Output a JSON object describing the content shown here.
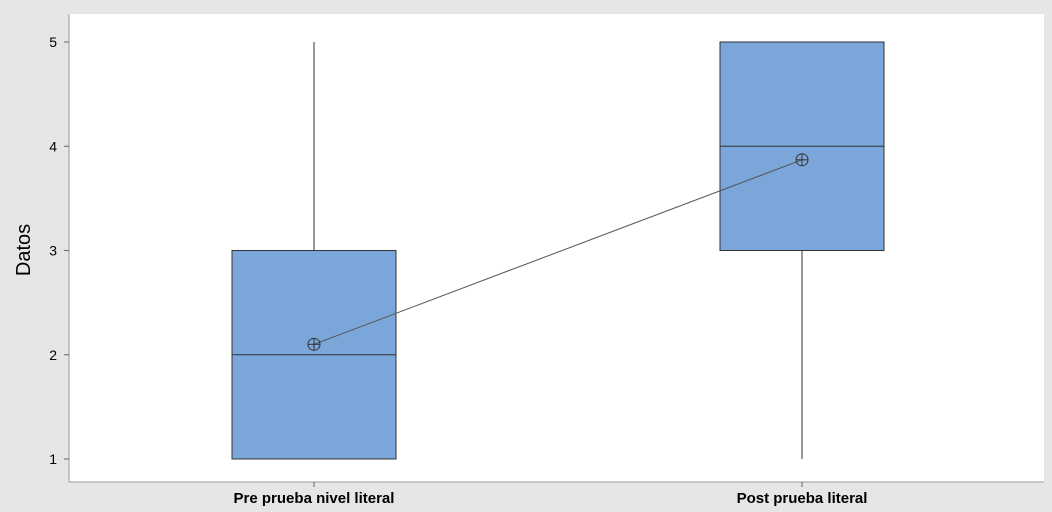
{
  "chart_data": {
    "type": "boxplot",
    "ylabel": "Datos",
    "ylim": [
      1,
      5
    ],
    "yticks": [
      1,
      2,
      3,
      4,
      5
    ],
    "categories": [
      "Pre prueba nivel literal",
      "Post prueba literal"
    ],
    "boxes": [
      {
        "min": 1,
        "q1": 1,
        "median": 2,
        "q3": 3,
        "max": 5,
        "mean": 2.1
      },
      {
        "min": 1,
        "q1": 3,
        "median": 4,
        "q3": 5,
        "max": 5,
        "mean": 3.87
      }
    ],
    "mean_connect_line": true,
    "box_color": "#7aa6d9",
    "grid": false
  }
}
